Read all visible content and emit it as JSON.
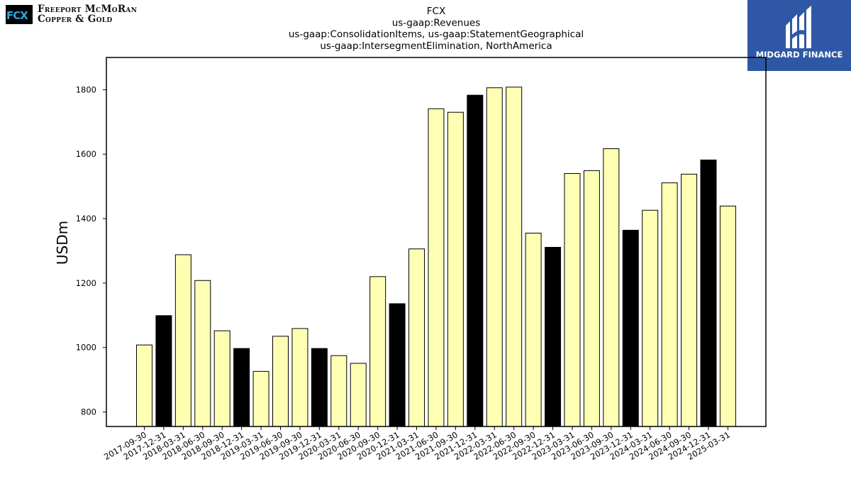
{
  "brand": {
    "logo_mark": "FCX",
    "name_line1": "Freeport McMoRan",
    "name_line2": "Copper & Gold"
  },
  "watermark": {
    "name": "MIDGARD FINANCE"
  },
  "chart_data": {
    "type": "bar",
    "title_lines": [
      "FCX",
      "us-gaap:Revenues",
      "us-gaap:ConsolidationItems, us-gaap:StatementGeographical",
      "us-gaap:IntersegmentElimination, NorthAmerica"
    ],
    "ylabel": "USDm",
    "xlabel": "",
    "ylim": [
      755,
      1900
    ],
    "yticks": [
      800,
      1000,
      1200,
      1400,
      1600,
      1800
    ],
    "grid": false,
    "colors": {
      "quarter": "#ffffb3",
      "year_end": "#000000",
      "edge": "#000000"
    },
    "categories": [
      "2017-09-30",
      "2017-12-31",
      "2018-03-31",
      "2018-06-30",
      "2018-09-30",
      "2018-12-31",
      "2019-03-31",
      "2019-06-30",
      "2019-09-30",
      "2019-12-31",
      "2020-03-31",
      "2020-06-30",
      "2020-09-30",
      "2020-12-31",
      "2021-03-31",
      "2021-06-30",
      "2021-09-30",
      "2021-12-31",
      "2022-03-31",
      "2022-06-30",
      "2022-09-30",
      "2022-12-31",
      "2023-03-31",
      "2023-06-30",
      "2023-09-30",
      "2023-12-31",
      "2024-03-31",
      "2024-06-30",
      "2024-09-30",
      "2024-12-31",
      "2025-03-31"
    ],
    "values": [
      1008,
      1099,
      1288,
      1208,
      1052,
      997,
      926,
      1035,
      1059,
      997,
      975,
      951,
      1220,
      1136,
      1306,
      1741,
      1730,
      1783,
      1806,
      1808,
      1355,
      1311,
      1540,
      1549,
      1617,
      1364,
      1426,
      1511,
      1538,
      1582,
      1439
    ],
    "year_end": [
      false,
      true,
      false,
      false,
      false,
      true,
      false,
      false,
      false,
      true,
      false,
      false,
      false,
      true,
      false,
      false,
      false,
      true,
      false,
      false,
      false,
      true,
      false,
      false,
      false,
      true,
      false,
      false,
      false,
      true,
      false
    ]
  }
}
